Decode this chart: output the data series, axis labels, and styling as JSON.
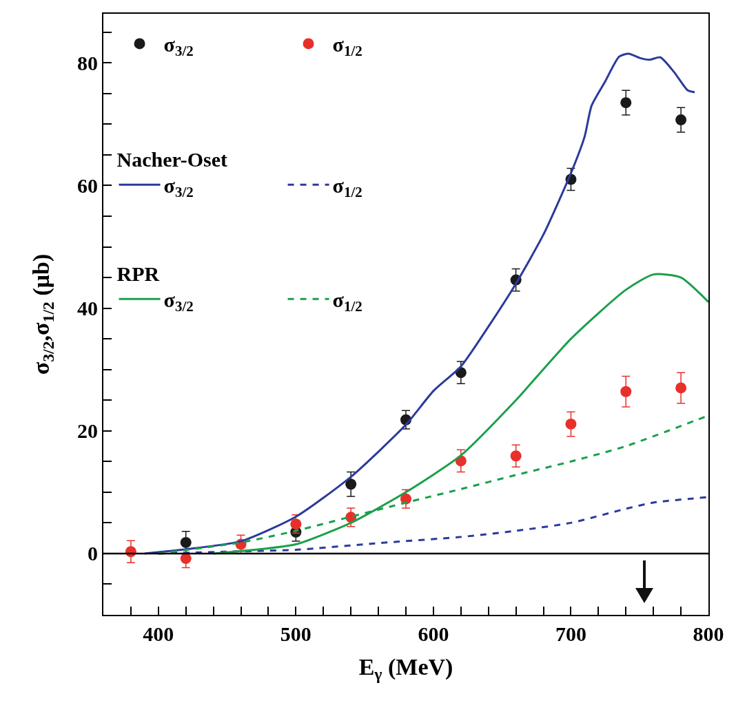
{
  "chart_data": {
    "type": "scatter",
    "xlabel": "E$_{γ}$ (MeV)",
    "ylabel": "σ$_{3/2}$,σ$_{1/2}$ (μb)",
    "xlim": [
      360,
      800
    ],
    "ylim": [
      -10,
      88
    ],
    "xticks": [
      {
        "value": 380,
        "label": null
      },
      400,
      {
        "value": 420,
        "label": null
      },
      {
        "value": 440,
        "label": null
      },
      {
        "value": 460,
        "label": null
      },
      {
        "value": 480,
        "label": null
      },
      500,
      {
        "value": 520,
        "label": null
      },
      {
        "value": 540,
        "label": null
      },
      {
        "value": 560,
        "label": null
      },
      {
        "value": 580,
        "label": null
      },
      600,
      {
        "value": 620,
        "label": null
      },
      {
        "value": 640,
        "label": null
      },
      {
        "value": 660,
        "label": null
      },
      {
        "value": 680,
        "label": null
      },
      700,
      {
        "value": 720,
        "label": null
      },
      {
        "value": 740,
        "label": null
      },
      {
        "value": 760,
        "label": null
      },
      {
        "value": 780,
        "label": null
      },
      800
    ],
    "yticks": [
      {
        "value": -5,
        "label": null
      },
      0,
      {
        "value": 5,
        "label": null
      },
      {
        "value": 10,
        "label": null
      },
      {
        "value": 15,
        "label": null
      },
      20,
      {
        "value": 25,
        "label": null
      },
      {
        "value": 30,
        "label": null
      },
      {
        "value": 35,
        "label": null
      },
      40,
      {
        "value": 45,
        "label": null
      },
      {
        "value": 50,
        "label": null
      },
      {
        "value": 55,
        "label": null
      },
      60,
      {
        "value": 65,
        "label": null
      },
      {
        "value": 70,
        "label": null
      },
      {
        "value": 75,
        "label": null
      },
      80,
      {
        "value": 85,
        "label": null
      }
    ],
    "grid": false,
    "legend": "top left",
    "annotations": [
      "Nacher-Oset",
      "RPR"
    ],
    "ref_lines": [
      {
        "axis": "y",
        "value": 0,
        "color": "#000000"
      }
    ],
    "series": [
      {
        "name": "σ$_{3/2}$",
        "marker": "circle",
        "color": "#1a1a1a",
        "x": [
          420,
          460,
          500,
          540,
          580,
          620,
          660,
          700,
          740,
          780
        ],
        "values": [
          1.8,
          null,
          3.5,
          11.3,
          21.8,
          29.5,
          44.6,
          61.0,
          73.5,
          70.7
        ],
        "errors": [
          1.8,
          null,
          1.5,
          2,
          1.5,
          1.8,
          1.8,
          1.8,
          2,
          2
        ]
      },
      {
        "name": "σ$_{1/2}$",
        "marker": "circle",
        "color": "#e8302a",
        "x": [
          380,
          420,
          460,
          500,
          540,
          580,
          620,
          660,
          700,
          740,
          780
        ],
        "values": [
          0.3,
          -0.8,
          1.5,
          4.8,
          5.9,
          8.9,
          15.1,
          15.9,
          21.1,
          26.4,
          27.0
        ],
        "errors": [
          1.8,
          1.5,
          1.5,
          1.5,
          1.5,
          1.5,
          1.8,
          1.8,
          2,
          2.5,
          2.5
        ]
      },
      {
        "name": "σ$_{3/2}$",
        "type": "line",
        "line_style": "solid",
        "color": "#2b3a9c",
        "x": [
          390,
          420,
          460,
          500,
          540,
          580,
          600,
          620,
          640,
          660,
          680,
          700,
          710,
          715,
          725,
          735,
          742,
          750,
          757,
          765,
          775,
          785,
          790
        ],
        "values": [
          0,
          0.7,
          2,
          6,
          12.5,
          21,
          26.5,
          30.5,
          37,
          44,
          52,
          62,
          68,
          73,
          77,
          81,
          81.5,
          80.8,
          80.5,
          80.9,
          78.5,
          75.5,
          75.2
        ]
      },
      {
        "name": "σ$_{1/2}$",
        "type": "line",
        "line_style": "dashed",
        "color": "#2b3a9c",
        "x": [
          400,
          450,
          500,
          560,
          620,
          660,
          700,
          740,
          760,
          800
        ],
        "values": [
          0,
          0.3,
          0.6,
          1.7,
          2.7,
          3.7,
          5,
          7.3,
          8.3,
          9.2
        ]
      },
      {
        "name": "σ$_{3/2}$",
        "type": "line",
        "line_style": "solid",
        "color": "#1aa04a",
        "x": [
          440,
          470,
          500,
          540,
          580,
          620,
          660,
          700,
          740,
          760,
          780,
          800
        ],
        "values": [
          0,
          0.6,
          1.5,
          5,
          10,
          16,
          25,
          35,
          43,
          45.5,
          45,
          41
        ]
      },
      {
        "name": "σ$_{1/2}$",
        "type": "line",
        "line_style": "dashed",
        "color": "#1aa04a",
        "x": [
          400,
          460,
          500,
          540,
          580,
          620,
          660,
          700,
          740,
          800
        ],
        "values": [
          0,
          1.8,
          3.7,
          6,
          8.3,
          10.5,
          12.8,
          15,
          17.5,
          22.5
        ]
      }
    ]
  }
}
